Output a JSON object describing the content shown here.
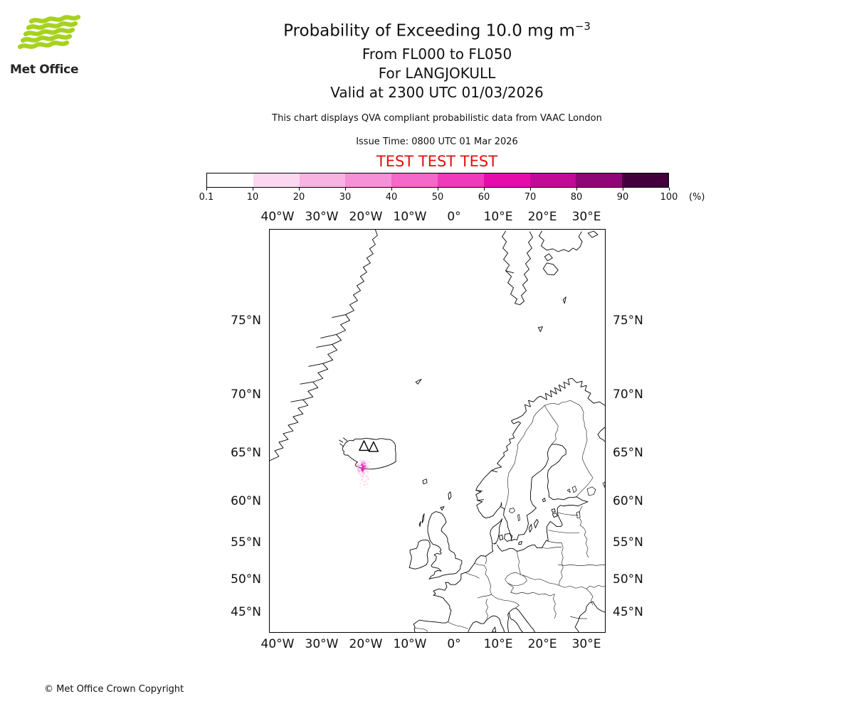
{
  "logo": {
    "brand": "Met Office"
  },
  "header": {
    "title_prefix": "Probability of Exceeding 10.0 mg m",
    "title_exponent": "−3",
    "subtitle1": "From FL000 to FL050",
    "subtitle2": "For LANGJOKULL",
    "subtitle3": "Valid at 2300 UTC 01/03/2026",
    "note": "This chart displays QVA compliant probabilistic data from VAAC London",
    "issue_time": "Issue Time: 0800 UTC 01 Mar 2026",
    "test_banner": "TEST TEST TEST"
  },
  "colorbar": {
    "tick_labels": [
      "0.1",
      "10",
      "20",
      "30",
      "40",
      "50",
      "60",
      "70",
      "80",
      "90",
      "100"
    ],
    "unit_label": "(%)",
    "segment_colors": [
      "#fefefe",
      "#fcd7f0",
      "#f9b3e3",
      "#f690d7",
      "#f368c9",
      "#ef3abb",
      "#e60cac",
      "#c20998",
      "#8f0677",
      "#43003c"
    ]
  },
  "map": {
    "lon_labels": [
      "40°W",
      "30°W",
      "20°W",
      "10°W",
      "0°",
      "10°E",
      "20°E",
      "30°E"
    ],
    "lat_labels": [
      "75°N",
      "70°N",
      "65°N",
      "60°N",
      "55°N",
      "50°N",
      "45°N"
    ]
  },
  "footer": {
    "copyright": "© Met Office Crown Copyright"
  },
  "colors": {
    "test_red": "#e01010",
    "logo_green": "#a6d21e"
  },
  "chart_data": {
    "type": "probability_exceedance_map",
    "title": "Probability of Exceeding 10.0 mg m⁻³",
    "threshold": "10.0 mg m⁻³",
    "flight_levels": "FL000 to FL050",
    "volcano": "LANGJOKULL",
    "valid_time": "2300 UTC 01/03/2026",
    "issue_time": "0800 UTC 01 Mar 2026",
    "source": "VAAC London",
    "projection": "Mercator",
    "lon_range": [
      -42,
      34
    ],
    "lat_range": [
      41.5,
      79.5
    ],
    "lon_ticks_deg": [
      -40,
      -30,
      -20,
      -10,
      0,
      10,
      20,
      30
    ],
    "lat_ticks_deg": [
      75,
      70,
      65,
      60,
      55,
      50,
      45
    ],
    "probability_bins_percent": [
      0.1,
      10,
      20,
      30,
      40,
      50,
      60,
      70,
      80,
      90,
      100
    ],
    "colorbar_unit": "%",
    "plume": {
      "description": "Small speckled ash-probability plume just south-southwest of Iceland",
      "center_lon": -20.8,
      "center_lat": 63.6,
      "approx_extent_lon": [
        -22.5,
        -18.5
      ],
      "approx_extent_lat": [
        61.5,
        64.8
      ],
      "max_probability_percent_approx": 40,
      "speckle_colors": [
        "#f7b8e7",
        "#ee62cb",
        "#e313ae"
      ]
    },
    "volcano_marker": {
      "name": "LANGJOKULL",
      "lon": -20.5,
      "lat": 64.7,
      "symbol": "double-triangle"
    }
  }
}
